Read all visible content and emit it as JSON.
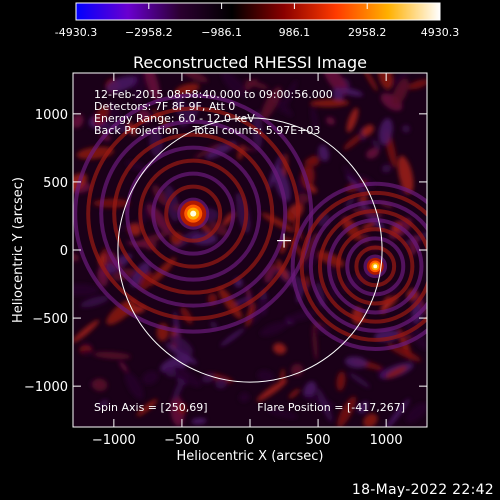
{
  "colorbar": {
    "tick_labels": [
      "-4930.3",
      "−2958.2",
      "−986.1",
      "986.1",
      "2958.2",
      "4930.3"
    ],
    "colors": [
      "#0000ff",
      "#6a00d0",
      "#2b0030",
      "#000000",
      "#8a0000",
      "#ff3a00",
      "#ffb000",
      "#ffffff"
    ]
  },
  "chart_data": {
    "type": "heatmap",
    "title": "Reconstructed RHESSI Image",
    "xlabel": "Heliocentric X (arcsec)",
    "ylabel": "Heliocentric Y (arcsec)",
    "xlim": [
      -1300,
      1300
    ],
    "ylim": [
      -1300,
      1300
    ],
    "xticks": [
      -1000,
      -500,
      0,
      500,
      1000
    ],
    "yticks": [
      -1000,
      -500,
      0,
      500,
      1000
    ],
    "xtick_labels": [
      "−1000",
      "−500",
      "0",
      "500",
      "1000"
    ],
    "ytick_labels": [
      "−1000",
      "−500",
      "0",
      "500",
      "1000"
    ],
    "solar_limb_radius": 970,
    "spin_axis": [
      250,
      69
    ],
    "flare_position": [
      -417,
      267
    ],
    "sources": [
      {
        "x": -417,
        "y": 267,
        "peak": 4930
      },
      {
        "x": 920,
        "y": -120,
        "peak": 3200
      }
    ],
    "annotations": [
      "12-Feb-2015 08:58:40.000 to 09:00:56.000",
      "Detectors: 7F 8F 9F, Att 0",
      "Energy Range: 6.0 - 12.0 keV",
      "Back Projection    Total counts: 5.97E+03"
    ],
    "spin_label": "Spin Axis = [250,69]",
    "flare_label": "Flare Position = [-417,267]"
  },
  "footer": {
    "datestamp": "18-May-2022 22:42"
  }
}
